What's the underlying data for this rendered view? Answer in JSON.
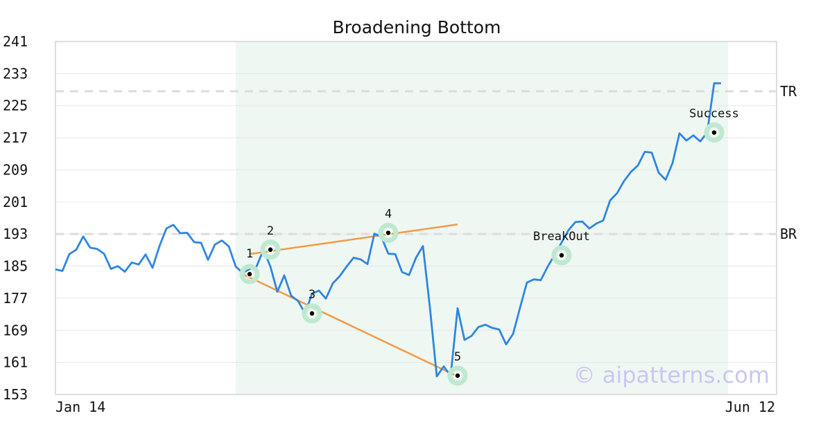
{
  "chart_data": {
    "type": "line",
    "title": "Broadening Bottom",
    "xlabel": "",
    "ylabel": "",
    "ylim": [
      153,
      241
    ],
    "yticks": [
      153,
      161,
      169,
      177,
      185,
      193,
      201,
      209,
      217,
      225,
      233,
      241
    ],
    "x_tick_labels": [
      "Jan 14",
      "Jun 12"
    ],
    "grid": "horizontal",
    "pattern_region_bars": [
      26,
      97
    ],
    "reference_lines": [
      {
        "label": "TR",
        "value": 228.6
      },
      {
        "label": "BR",
        "value": 193.0
      }
    ],
    "series": [
      {
        "color": "#2f86df",
        "values": [
          184.2,
          183.8,
          188.0,
          189.1,
          192.4,
          189.6,
          189.3,
          188.1,
          184.3,
          185.0,
          183.6,
          185.9,
          185.4,
          187.9,
          184.6,
          190.0,
          194.4,
          195.3,
          193.2,
          193.3,
          191.0,
          190.8,
          186.6,
          190.4,
          191.4,
          189.9,
          184.9,
          183.3,
          184.3,
          184.9,
          189.1,
          184.9,
          178.6,
          182.7,
          177.6,
          176.3,
          173.2,
          178.1,
          178.9,
          176.9,
          180.7,
          182.5,
          184.9,
          187.1,
          186.7,
          185.5,
          193.1,
          192.3,
          188.1,
          188.0,
          183.5,
          182.8,
          187.1,
          190.0,
          174.8,
          157.5,
          160.0,
          157.7,
          174.5,
          166.6,
          167.6,
          169.8,
          170.4,
          169.6,
          169.2,
          165.5,
          168.1,
          174.6,
          180.9,
          181.7,
          181.5,
          184.9,
          187.8,
          190.9,
          194.0,
          196.0,
          196.1,
          194.4,
          195.6,
          196.4,
          201.4,
          203.2,
          206.2,
          208.5,
          210.1,
          213.5,
          213.3,
          208.3,
          206.5,
          210.7,
          218.1,
          216.3,
          217.6,
          216.1,
          218.3,
          230.6,
          230.6
        ]
      }
    ],
    "pattern_lines": [
      {
        "from_bar": 27,
        "from_value": 183.0,
        "to_bar": 58,
        "to_value": 157.5,
        "color": "#f39a43"
      },
      {
        "from_bar": 28,
        "from_value": 188.0,
        "to_bar": 58,
        "to_value": 195.4,
        "color": "#f39a43"
      }
    ],
    "points": [
      {
        "label": "1",
        "bar": 28,
        "value": 183.0,
        "label_pos": "left"
      },
      {
        "label": "2",
        "bar": 31,
        "value": 189.1,
        "label_pos": "above"
      },
      {
        "label": "3",
        "bar": 37,
        "value": 173.2,
        "label_pos": "above"
      },
      {
        "label": "4",
        "bar": 48,
        "value": 193.3,
        "label_pos": "above"
      },
      {
        "label": "5",
        "bar": 58,
        "value": 157.7,
        "label_pos": "above"
      },
      {
        "label": "BreakOut",
        "bar": 73,
        "value": 187.7,
        "label_pos": "above"
      },
      {
        "label": "Success",
        "bar": 95,
        "value": 218.3,
        "label_pos": "above"
      }
    ],
    "watermark": "© aipatterns.com"
  }
}
